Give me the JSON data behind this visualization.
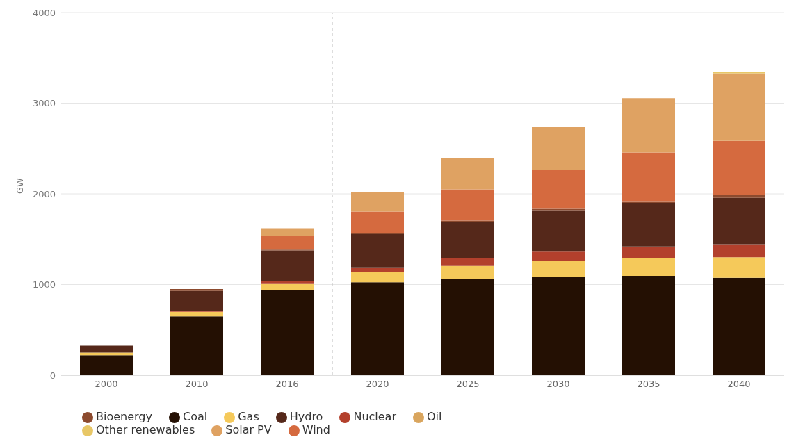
{
  "chart_data": {
    "type": "bar",
    "stacked": true,
    "ylabel": "GW",
    "categories": [
      "2000",
      "2010",
      "2016",
      "2020",
      "2025",
      "2030",
      "2035",
      "2040"
    ],
    "series": [
      {
        "name": "Coal",
        "color": "#241003",
        "values": [
          220,
          650,
          940,
          1025,
          1060,
          1080,
          1095,
          1075
        ]
      },
      {
        "name": "Gas",
        "color": "#f5c95a",
        "values": [
          30,
          50,
          65,
          110,
          145,
          180,
          195,
          225
        ]
      },
      {
        "name": "Oil",
        "color": "#d9a55e",
        "values": [
          0,
          0,
          0,
          0,
          0,
          0,
          0,
          0
        ]
      },
      {
        "name": "Nuclear",
        "color": "#b3402c",
        "values": [
          0,
          10,
          30,
          55,
          85,
          110,
          130,
          145
        ]
      },
      {
        "name": "Hydro",
        "color": "#55281a",
        "values": [
          75,
          220,
          340,
          365,
          400,
          450,
          480,
          510
        ]
      },
      {
        "name": "Bioenergy",
        "color": "#8c4a2e",
        "values": [
          0,
          20,
          10,
          15,
          15,
          15,
          20,
          30
        ]
      },
      {
        "name": "Wind",
        "color": "#d56a3f",
        "values": [
          0,
          0,
          155,
          235,
          345,
          430,
          535,
          600
        ]
      },
      {
        "name": "Solar PV",
        "color": "#dfa262",
        "values": [
          0,
          0,
          80,
          210,
          340,
          470,
          600,
          745
        ]
      },
      {
        "name": "Other renewables",
        "color": "#e8c766",
        "values": [
          0,
          0,
          0,
          0,
          0,
          0,
          0,
          15
        ]
      }
    ],
    "ylim": [
      0,
      4000
    ],
    "yticks": [
      0,
      1000,
      2000,
      3000,
      4000
    ],
    "grid": "y",
    "legend": "bottom",
    "ref_lines": [
      {
        "axis": "x",
        "value": "2020",
        "color": "#bbbbbb",
        "line_style": "dashed"
      }
    ]
  }
}
